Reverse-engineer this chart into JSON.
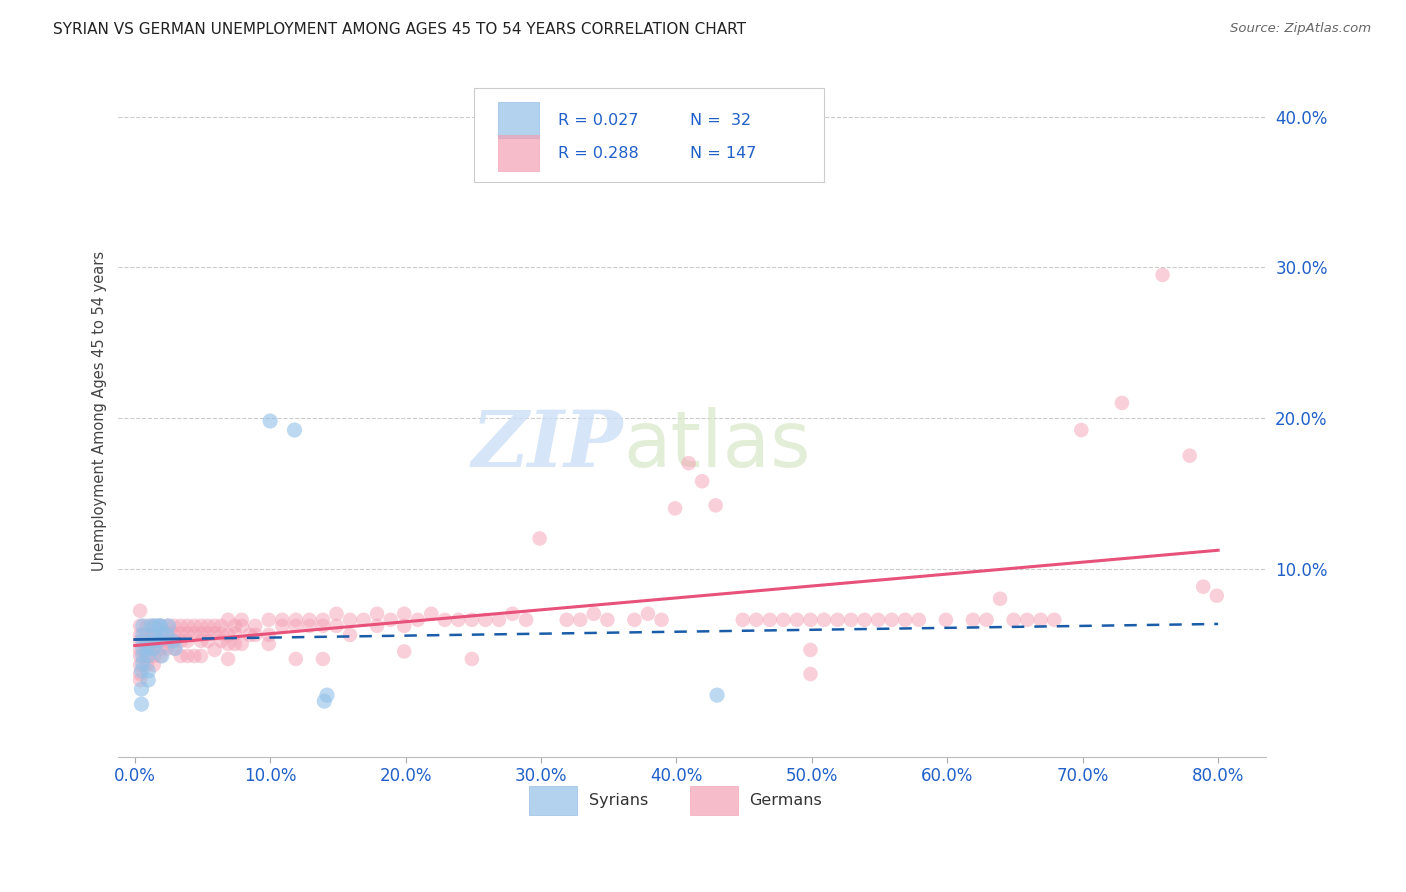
{
  "title": "SYRIAN VS GERMAN UNEMPLOYMENT AMONG AGES 45 TO 54 YEARS CORRELATION CHART",
  "source": "Source: ZipAtlas.com",
  "xlabel_ticks": [
    "0.0%",
    "10.0%",
    "20.0%",
    "30.0%",
    "40.0%",
    "50.0%",
    "60.0%",
    "70.0%",
    "80.0%"
  ],
  "xlabel_vals": [
    0.0,
    0.1,
    0.2,
    0.3,
    0.4,
    0.5,
    0.6,
    0.7,
    0.8
  ],
  "ylabel_ticks": [
    "10.0%",
    "20.0%",
    "30.0%",
    "40.0%"
  ],
  "ylabel_vals": [
    0.1,
    0.2,
    0.3,
    0.4
  ],
  "xlim": [
    -0.012,
    0.835
  ],
  "ylim": [
    -0.025,
    0.435
  ],
  "ylabel": "Unemployment Among Ages 45 to 54 years",
  "watermark_zip": "ZIP",
  "watermark_atlas": "atlas",
  "legend_blue_R": "R = 0.027",
  "legend_blue_N": "N =  32",
  "legend_pink_R": "R = 0.288",
  "legend_pink_N": "N = 147",
  "blue_color": "#92c0e8",
  "pink_color": "#f4a0b4",
  "blue_line_color": "#1a5ca8",
  "pink_line_color": "#e8527a",
  "blue_scatter": [
    [
      0.018,
      0.062
    ],
    [
      0.02,
      0.057
    ],
    [
      0.012,
      0.062
    ],
    [
      0.015,
      0.052
    ],
    [
      0.01,
      0.042
    ],
    [
      0.006,
      0.052
    ],
    [
      0.006,
      0.062
    ],
    [
      0.006,
      0.056
    ],
    [
      0.006,
      0.042
    ],
    [
      0.01,
      0.047
    ],
    [
      0.014,
      0.047
    ],
    [
      0.018,
      0.052
    ],
    [
      0.02,
      0.042
    ],
    [
      0.024,
      0.056
    ],
    [
      0.025,
      0.062
    ],
    [
      0.028,
      0.052
    ],
    [
      0.03,
      0.047
    ],
    [
      0.006,
      0.037
    ],
    [
      0.01,
      0.032
    ],
    [
      0.015,
      0.062
    ],
    [
      0.015,
      0.056
    ],
    [
      0.019,
      0.062
    ],
    [
      0.006,
      0.047
    ],
    [
      0.005,
      0.032
    ],
    [
      0.01,
      0.026
    ],
    [
      0.005,
      0.02
    ],
    [
      0.005,
      0.01
    ],
    [
      0.1,
      0.198
    ],
    [
      0.118,
      0.192
    ],
    [
      0.14,
      0.012
    ],
    [
      0.142,
      0.016
    ],
    [
      0.43,
      0.016
    ]
  ],
  "pink_scatter": [
    [
      0.004,
      0.062
    ],
    [
      0.004,
      0.072
    ],
    [
      0.004,
      0.052
    ],
    [
      0.004,
      0.042
    ],
    [
      0.004,
      0.03
    ],
    [
      0.004,
      0.056
    ],
    [
      0.004,
      0.046
    ],
    [
      0.004,
      0.036
    ],
    [
      0.004,
      0.026
    ],
    [
      0.009,
      0.062
    ],
    [
      0.009,
      0.052
    ],
    [
      0.009,
      0.042
    ],
    [
      0.009,
      0.056
    ],
    [
      0.009,
      0.046
    ],
    [
      0.009,
      0.036
    ],
    [
      0.014,
      0.062
    ],
    [
      0.014,
      0.057
    ],
    [
      0.014,
      0.052
    ],
    [
      0.014,
      0.047
    ],
    [
      0.014,
      0.042
    ],
    [
      0.014,
      0.036
    ],
    [
      0.019,
      0.062
    ],
    [
      0.019,
      0.057
    ],
    [
      0.019,
      0.052
    ],
    [
      0.019,
      0.047
    ],
    [
      0.019,
      0.042
    ],
    [
      0.024,
      0.062
    ],
    [
      0.024,
      0.057
    ],
    [
      0.024,
      0.052
    ],
    [
      0.024,
      0.047
    ],
    [
      0.029,
      0.062
    ],
    [
      0.029,
      0.057
    ],
    [
      0.029,
      0.052
    ],
    [
      0.029,
      0.047
    ],
    [
      0.034,
      0.062
    ],
    [
      0.034,
      0.057
    ],
    [
      0.034,
      0.052
    ],
    [
      0.034,
      0.042
    ],
    [
      0.039,
      0.062
    ],
    [
      0.039,
      0.057
    ],
    [
      0.039,
      0.052
    ],
    [
      0.039,
      0.042
    ],
    [
      0.044,
      0.062
    ],
    [
      0.044,
      0.057
    ],
    [
      0.044,
      0.042
    ],
    [
      0.049,
      0.062
    ],
    [
      0.049,
      0.057
    ],
    [
      0.049,
      0.052
    ],
    [
      0.049,
      0.042
    ],
    [
      0.054,
      0.062
    ],
    [
      0.054,
      0.057
    ],
    [
      0.054,
      0.052
    ],
    [
      0.059,
      0.062
    ],
    [
      0.059,
      0.057
    ],
    [
      0.059,
      0.046
    ],
    [
      0.064,
      0.062
    ],
    [
      0.064,
      0.057
    ],
    [
      0.064,
      0.052
    ],
    [
      0.069,
      0.066
    ],
    [
      0.069,
      0.056
    ],
    [
      0.069,
      0.05
    ],
    [
      0.069,
      0.04
    ],
    [
      0.074,
      0.062
    ],
    [
      0.074,
      0.057
    ],
    [
      0.074,
      0.05
    ],
    [
      0.079,
      0.066
    ],
    [
      0.079,
      0.062
    ],
    [
      0.079,
      0.05
    ],
    [
      0.085,
      0.056
    ],
    [
      0.089,
      0.062
    ],
    [
      0.089,
      0.056
    ],
    [
      0.099,
      0.066
    ],
    [
      0.099,
      0.056
    ],
    [
      0.099,
      0.05
    ],
    [
      0.109,
      0.066
    ],
    [
      0.109,
      0.062
    ],
    [
      0.119,
      0.066
    ],
    [
      0.119,
      0.062
    ],
    [
      0.119,
      0.04
    ],
    [
      0.129,
      0.066
    ],
    [
      0.129,
      0.062
    ],
    [
      0.139,
      0.066
    ],
    [
      0.139,
      0.062
    ],
    [
      0.139,
      0.04
    ],
    [
      0.149,
      0.07
    ],
    [
      0.149,
      0.062
    ],
    [
      0.159,
      0.066
    ],
    [
      0.159,
      0.056
    ],
    [
      0.169,
      0.066
    ],
    [
      0.179,
      0.07
    ],
    [
      0.179,
      0.062
    ],
    [
      0.189,
      0.066
    ],
    [
      0.199,
      0.07
    ],
    [
      0.199,
      0.062
    ],
    [
      0.199,
      0.045
    ],
    [
      0.209,
      0.066
    ],
    [
      0.219,
      0.07
    ],
    [
      0.229,
      0.066
    ],
    [
      0.239,
      0.066
    ],
    [
      0.249,
      0.066
    ],
    [
      0.249,
      0.04
    ],
    [
      0.259,
      0.066
    ],
    [
      0.269,
      0.066
    ],
    [
      0.279,
      0.07
    ],
    [
      0.289,
      0.066
    ],
    [
      0.299,
      0.12
    ],
    [
      0.319,
      0.066
    ],
    [
      0.329,
      0.066
    ],
    [
      0.339,
      0.07
    ],
    [
      0.349,
      0.066
    ],
    [
      0.369,
      0.066
    ],
    [
      0.379,
      0.07
    ],
    [
      0.389,
      0.066
    ],
    [
      0.399,
      0.14
    ],
    [
      0.409,
      0.17
    ],
    [
      0.419,
      0.158
    ],
    [
      0.429,
      0.142
    ],
    [
      0.449,
      0.066
    ],
    [
      0.459,
      0.066
    ],
    [
      0.469,
      0.066
    ],
    [
      0.479,
      0.066
    ],
    [
      0.489,
      0.066
    ],
    [
      0.499,
      0.066
    ],
    [
      0.499,
      0.046
    ],
    [
      0.499,
      0.03
    ],
    [
      0.509,
      0.066
    ],
    [
      0.519,
      0.066
    ],
    [
      0.529,
      0.066
    ],
    [
      0.539,
      0.066
    ],
    [
      0.549,
      0.066
    ],
    [
      0.559,
      0.066
    ],
    [
      0.569,
      0.066
    ],
    [
      0.579,
      0.066
    ],
    [
      0.599,
      0.066
    ],
    [
      0.619,
      0.066
    ],
    [
      0.629,
      0.066
    ],
    [
      0.639,
      0.08
    ],
    [
      0.649,
      0.066
    ],
    [
      0.659,
      0.066
    ],
    [
      0.669,
      0.066
    ],
    [
      0.679,
      0.066
    ],
    [
      0.699,
      0.192
    ],
    [
      0.729,
      0.21
    ],
    [
      0.759,
      0.295
    ],
    [
      0.779,
      0.175
    ],
    [
      0.789,
      0.088
    ],
    [
      0.799,
      0.082
    ]
  ],
  "background_color": "#ffffff",
  "grid_color": "#cccccc"
}
